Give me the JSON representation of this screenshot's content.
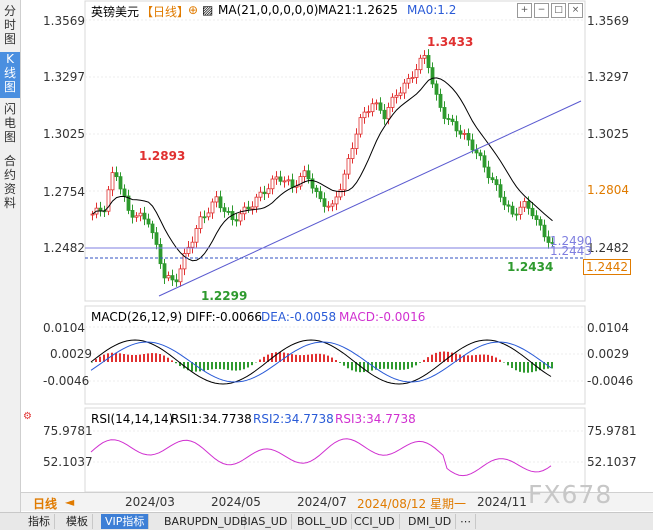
{
  "sidebar": {
    "tabs": [
      {
        "label": "分\n时\n图",
        "active": false
      },
      {
        "label": "K\n线\n图",
        "active": true
      },
      {
        "label": "闪\n电\n图",
        "active": false
      },
      {
        "label": "合\n约\n资\n料",
        "active": false
      }
    ]
  },
  "header": {
    "symbol": "英镑美元",
    "period": "【日线】",
    "ma_label": "MA(21,0,0,0,0,0)",
    "ma21": "MA21:1.2625",
    "ma0": "MA0:1.2"
  },
  "price_axis": [
    "1.3569",
    "1.3297",
    "1.3025",
    "1.2754",
    "1.2482"
  ],
  "price_axis_current": "1.2804",
  "price_box": "1.2442",
  "price_overlay": [
    "1.2490",
    "1.2443"
  ],
  "annotations": {
    "high": "1.3433",
    "peak": "1.2893",
    "low": "1.2299",
    "recent_low": "1.2434"
  },
  "macd": {
    "label": "MACD(26,12,9)",
    "diff": "DIFF:-0.0066",
    "dea": "DEA:-0.0058",
    "macd": "MACD:-0.0016",
    "axis": [
      "0.0104",
      "0.0029",
      "-0.0046"
    ]
  },
  "rsi": {
    "label": "RSI(14,14,14)",
    "rsi1": "RSI1:34.7738",
    "rsi2": "RSI2:34.7738",
    "rsi3": "RSI3:34.7738",
    "axis": [
      "75.9781",
      "52.1037"
    ]
  },
  "timebar": {
    "period_label": "日线",
    "dates": [
      "2024/03",
      "2024/05",
      "2024/07",
      "2024/08/12 星期一",
      "2024/11"
    ]
  },
  "bottom_tabs": [
    "指标",
    "模板",
    "VIP指标",
    "BARUPDN_UD",
    "BIAS_UD",
    "BOLL_UD",
    "CCI_UD",
    "DMI_UD"
  ],
  "watermark": "FX678",
  "colors": {
    "up": "#e03030",
    "down": "#2e9a2e",
    "ma": "#000000",
    "accent": "#e07b00",
    "trend": "#5a5ad0"
  }
}
